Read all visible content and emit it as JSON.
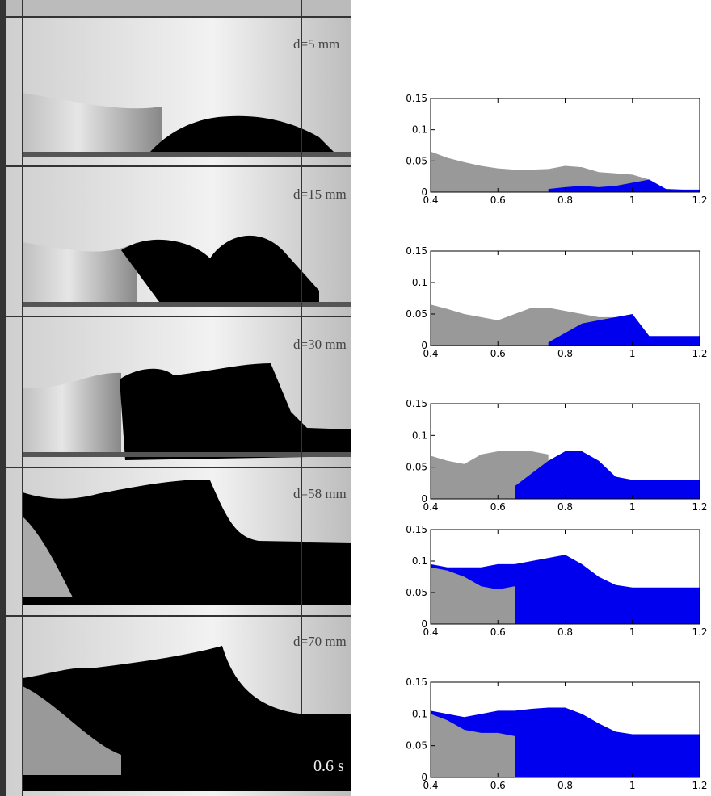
{
  "photo_labels": [
    "d=5 mm",
    "d=15 mm",
    "d=30 mm",
    "d=58 mm",
    "d=70 mm"
  ],
  "time_label": "0.6 s",
  "chart_data": [
    {
      "type": "area",
      "x": [
        0.4,
        0.45,
        0.5,
        0.55,
        0.6,
        0.65,
        0.7,
        0.75,
        0.8,
        0.85,
        0.9,
        0.95,
        1,
        1.05,
        1.1,
        1.15,
        1.2
      ],
      "series": [
        {
          "color": "#999999",
          "values": [
            0.065,
            0.055,
            0.048,
            0.042,
            0.038,
            0.036,
            0.036,
            0.037,
            0.042,
            0.04,
            0.032,
            0.03,
            0.028,
            0.02,
            null,
            null,
            null
          ]
        },
        {
          "color": "#0000ee",
          "values": [
            null,
            null,
            null,
            null,
            null,
            null,
            null,
            0.005,
            0.008,
            0.01,
            0.008,
            0.01,
            0.015,
            0.02,
            0.005,
            0.004,
            0.004
          ]
        }
      ],
      "xlim": [
        0.4,
        1.2
      ],
      "ylim": [
        0,
        0.15
      ],
      "xticks": [
        0.4,
        0.6,
        0.8,
        1,
        1.2
      ],
      "yticks": [
        0,
        0.05,
        0.1,
        0.15
      ]
    },
    {
      "type": "area",
      "x": [
        0.4,
        0.45,
        0.5,
        0.55,
        0.6,
        0.65,
        0.7,
        0.75,
        0.8,
        0.85,
        0.9,
        0.95,
        1,
        1.05,
        1.1,
        1.15,
        1.2
      ],
      "series": [
        {
          "color": "#999999",
          "values": [
            0.065,
            0.058,
            0.05,
            0.045,
            0.04,
            0.05,
            0.06,
            0.06,
            0.055,
            0.05,
            0.045,
            0.045,
            null,
            null,
            null,
            null,
            null
          ]
        },
        {
          "color": "#0000ee",
          "values": [
            null,
            null,
            null,
            null,
            null,
            null,
            null,
            0.005,
            0.02,
            0.035,
            0.04,
            0.045,
            0.05,
            0.015,
            0.015,
            0.015,
            0.015
          ]
        }
      ],
      "xlim": [
        0.4,
        1.2
      ],
      "ylim": [
        0,
        0.15
      ],
      "xticks": [
        0.4,
        0.6,
        0.8,
        1,
        1.2
      ],
      "yticks": [
        0,
        0.05,
        0.1,
        0.15
      ]
    },
    {
      "type": "area",
      "x": [
        0.4,
        0.45,
        0.5,
        0.55,
        0.6,
        0.65,
        0.7,
        0.75,
        0.8,
        0.85,
        0.9,
        0.95,
        1,
        1.05,
        1.1,
        1.15,
        1.2
      ],
      "series": [
        {
          "color": "#999999",
          "values": [
            0.068,
            0.06,
            0.055,
            0.07,
            0.075,
            0.075,
            0.075,
            0.07,
            null,
            null,
            null,
            null,
            null,
            null,
            null,
            null,
            null
          ]
        },
        {
          "color": "#0000ee",
          "values": [
            null,
            null,
            null,
            null,
            null,
            0.02,
            0.04,
            0.06,
            0.075,
            0.075,
            0.06,
            0.035,
            0.03,
            0.03,
            0.03,
            0.03,
            0.03
          ]
        }
      ],
      "xlim": [
        0.4,
        1.2
      ],
      "ylim": [
        0,
        0.15
      ],
      "xticks": [
        0.4,
        0.6,
        0.8,
        1,
        1.2
      ],
      "yticks": [
        0,
        0.05,
        0.1,
        0.15
      ]
    },
    {
      "type": "area",
      "x": [
        0.4,
        0.45,
        0.5,
        0.55,
        0.6,
        0.65,
        0.7,
        0.75,
        0.8,
        0.85,
        0.9,
        0.95,
        1,
        1.05,
        1.1,
        1.15,
        1.2
      ],
      "series": [
        {
          "color": "#0000ee",
          "values": [
            0.095,
            0.09,
            0.09,
            0.09,
            0.095,
            0.095,
            0.1,
            0.105,
            0.11,
            0.095,
            0.075,
            0.062,
            0.058,
            0.058,
            0.058,
            0.058,
            0.058
          ]
        },
        {
          "color": "#999999",
          "values": [
            0.09,
            0.085,
            0.075,
            0.06,
            0.055,
            0.06,
            null,
            null,
            null,
            null,
            null,
            null,
            null,
            null,
            null,
            null,
            null
          ]
        }
      ],
      "xlim": [
        0.4,
        1.2
      ],
      "ylim": [
        0,
        0.15
      ],
      "xticks": [
        0.4,
        0.6,
        0.8,
        1,
        1.2
      ],
      "yticks": [
        0,
        0.05,
        0.1,
        0.15
      ]
    },
    {
      "type": "area",
      "x": [
        0.4,
        0.45,
        0.5,
        0.55,
        0.6,
        0.65,
        0.7,
        0.75,
        0.8,
        0.85,
        0.9,
        0.95,
        1,
        1.05,
        1.1,
        1.15,
        1.2
      ],
      "series": [
        {
          "color": "#0000ee",
          "values": [
            0.105,
            0.1,
            0.095,
            0.1,
            0.105,
            0.105,
            0.108,
            0.11,
            0.11,
            0.1,
            0.085,
            0.072,
            0.068,
            0.068,
            0.068,
            0.068,
            0.068
          ]
        },
        {
          "color": "#999999",
          "values": [
            0.1,
            0.09,
            0.075,
            0.07,
            0.07,
            0.065,
            null,
            null,
            null,
            null,
            null,
            null,
            null,
            null,
            null,
            null,
            null
          ]
        }
      ],
      "xlim": [
        0.4,
        1.2
      ],
      "ylim": [
        0,
        0.15
      ],
      "xticks": [
        0.4,
        0.6,
        0.8,
        1,
        1.2
      ],
      "yticks": [
        0,
        0.05,
        0.1,
        0.15
      ]
    }
  ]
}
